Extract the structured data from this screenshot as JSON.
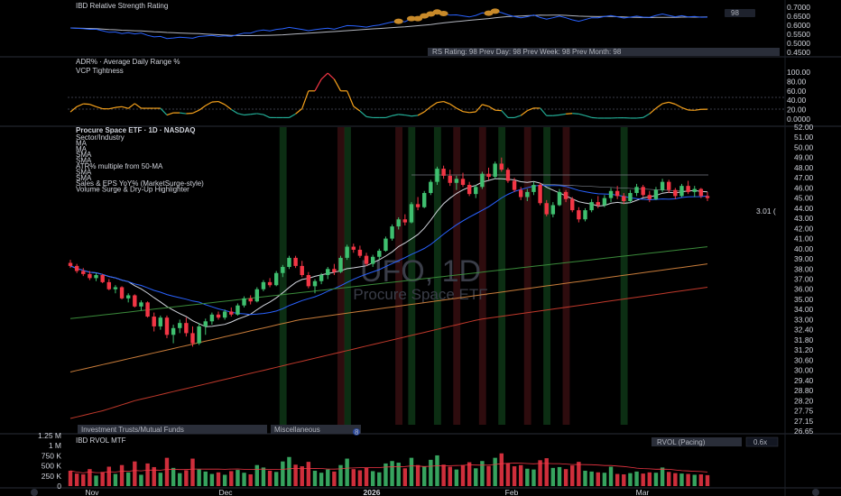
{
  "colors": {
    "up": "#26a69a",
    "up_bright": "#3fbf6f",
    "down": "#f23645",
    "rs_line": "#2962ff",
    "rs_ma": "#b2b5be",
    "rs_dot": "#c88a2a",
    "vcp_up": "#f7a21b",
    "vcp_down": "#22ab94",
    "vcp_high": "#f23645",
    "ma_short": "#d1d4dc",
    "ma_mid": "#2962ff",
    "ma_50": "#3a8a3a",
    "ma_100": "#c87c3a",
    "ma_200": "#c0392b",
    "surge_band": "#0f3a18",
    "dryup_band": "#3a0f12"
  },
  "rs_pane": {
    "title": "IBD Relative Strength Rating",
    "ticks": [
      "0.7000",
      "0.6500",
      "0.6000",
      "0.5500",
      "0.5000",
      "0.4500"
    ],
    "rating_badge": "98",
    "rating_bar": "RS Rating: 98   Prev Day: 98   Prev Week: 98   Prev Month: 98"
  },
  "adr_pane": {
    "title": "ADR% · Average Daily Range %"
  },
  "vcp_pane": {
    "title": "VCP Tightness",
    "ticks": [
      "100.00",
      "80.00",
      "60.00",
      "40.00",
      "20.00",
      "0.0000"
    ]
  },
  "price_pane": {
    "symbol_line": "Procure Space ETF · 1D · NASDAQ",
    "indicators": [
      "Sector/Industry",
      "MA",
      "MA",
      "SMA",
      "SMA",
      "ATR% multiple from 50-MA",
      "SMA",
      "SMA",
      "Sales & EPS YoY% (MarketSurge-style)",
      "Volume Surge & Dry-Up Highlighter"
    ],
    "ticks": [
      "52.00",
      "51.00",
      "50.00",
      "49.00",
      "48.00",
      "47.00",
      "46.00",
      "45.00",
      "44.00",
      "43.00",
      "42.00",
      "41.00",
      "40.00",
      "39.00",
      "38.00",
      "37.00",
      "36.00",
      "35.00",
      "34.00",
      "33.00",
      "32.40",
      "31.80",
      "31.20",
      "30.60",
      "30.00",
      "29.40",
      "28.80",
      "28.20",
      "27.75",
      "27.15",
      "26.65"
    ],
    "watermark_symbol": "UFO, 1D",
    "watermark_name": "Procure Space ETF",
    "atr_label": "3.01 (",
    "industry_tags": [
      "Investment Trusts/Mutual Funds",
      "Miscellaneous"
    ],
    "industry_badge": "8"
  },
  "volume_pane": {
    "title": "IBD RVOL MTF",
    "ticks": [
      "1.25 M",
      "1 M",
      "750 K",
      "500 K",
      "250 K",
      "0"
    ],
    "rvol_label": "RVOL (Pacing)",
    "rvol_value": "0.6x"
  },
  "time_axis": {
    "labels": [
      "Nov",
      "Dec",
      "2026",
      "Feb",
      "Mar"
    ]
  },
  "chart_data": {
    "type": "candlestick",
    "title": "Procure Space ETF · 1D · NASDAQ",
    "ylim": [
      26.65,
      52.0
    ],
    "candles": [
      [
        38.6,
        38.9,
        38.1,
        38.3
      ],
      [
        38.3,
        38.5,
        37.6,
        37.8
      ],
      [
        37.8,
        38.1,
        37.3,
        37.5
      ],
      [
        37.5,
        37.8,
        36.9,
        37.1
      ],
      [
        37.1,
        37.6,
        36.8,
        37.4
      ],
      [
        37.4,
        37.5,
        36.6,
        36.7
      ],
      [
        36.7,
        37.0,
        35.9,
        36.0
      ],
      [
        36.0,
        36.4,
        35.6,
        36.2
      ],
      [
        36.2,
        36.3,
        35.0,
        35.1
      ],
      [
        35.1,
        35.6,
        34.7,
        35.4
      ],
      [
        35.4,
        35.5,
        34.2,
        34.3
      ],
      [
        34.3,
        34.9,
        33.9,
        34.7
      ],
      [
        34.7,
        34.8,
        33.2,
        33.3
      ],
      [
        33.3,
        33.7,
        32.3,
        32.6
      ],
      [
        32.6,
        33.4,
        32.4,
        33.2
      ],
      [
        33.2,
        33.4,
        31.9,
        32.1
      ],
      [
        32.1,
        32.7,
        31.6,
        32.5
      ],
      [
        32.5,
        33.0,
        32.2,
        32.8
      ],
      [
        32.8,
        33.2,
        32.0,
        32.2
      ],
      [
        32.2,
        32.6,
        31.4,
        31.6
      ],
      [
        31.6,
        32.8,
        31.5,
        32.6
      ],
      [
        32.6,
        33.1,
        32.1,
        32.9
      ],
      [
        32.9,
        33.7,
        32.7,
        33.5
      ],
      [
        33.5,
        33.8,
        33.0,
        33.2
      ],
      [
        33.2,
        34.0,
        33.0,
        33.8
      ],
      [
        33.8,
        34.2,
        33.3,
        33.5
      ],
      [
        33.5,
        34.6,
        33.4,
        34.4
      ],
      [
        34.4,
        35.3,
        34.2,
        35.1
      ],
      [
        35.1,
        35.4,
        34.5,
        34.8
      ],
      [
        34.8,
        36.2,
        34.7,
        36.0
      ],
      [
        36.0,
        36.9,
        35.8,
        36.7
      ],
      [
        36.7,
        37.1,
        36.2,
        36.4
      ],
      [
        36.4,
        37.8,
        36.3,
        37.6
      ],
      [
        37.6,
        38.4,
        37.2,
        38.2
      ],
      [
        38.2,
        39.3,
        38.0,
        39.1
      ],
      [
        39.1,
        39.3,
        38.1,
        38.3
      ],
      [
        38.3,
        38.8,
        37.2,
        37.4
      ],
      [
        37.4,
        37.7,
        36.1,
        36.3
      ],
      [
        36.3,
        37.0,
        35.6,
        36.8
      ],
      [
        36.8,
        37.6,
        36.5,
        37.4
      ],
      [
        37.4,
        38.2,
        37.0,
        38.0
      ],
      [
        38.0,
        38.5,
        37.4,
        37.7
      ],
      [
        37.7,
        39.3,
        37.6,
        39.1
      ],
      [
        39.1,
        40.4,
        38.9,
        40.2
      ],
      [
        40.2,
        40.5,
        39.6,
        39.9
      ],
      [
        39.9,
        40.3,
        39.1,
        39.3
      ],
      [
        39.3,
        39.6,
        38.3,
        38.5
      ],
      [
        38.5,
        39.4,
        38.2,
        39.2
      ],
      [
        39.2,
        40.0,
        38.9,
        39.8
      ],
      [
        39.8,
        41.2,
        39.7,
        41.0
      ],
      [
        41.0,
        42.4,
        40.8,
        42.2
      ],
      [
        42.2,
        43.1,
        41.9,
        42.9
      ],
      [
        42.9,
        43.4,
        42.3,
        42.6
      ],
      [
        42.6,
        44.6,
        42.5,
        44.4
      ],
      [
        44.4,
        45.1,
        43.8,
        44.1
      ],
      [
        44.1,
        45.7,
        44.0,
        45.5
      ],
      [
        45.5,
        46.8,
        45.3,
        46.6
      ],
      [
        46.6,
        48.1,
        46.3,
        47.9
      ],
      [
        47.9,
        48.2,
        46.9,
        47.2
      ],
      [
        47.2,
        47.8,
        46.2,
        46.5
      ],
      [
        46.5,
        47.2,
        45.8,
        46.9
      ],
      [
        46.9,
        47.5,
        46.1,
        46.3
      ],
      [
        46.3,
        46.6,
        45.2,
        45.4
      ],
      [
        45.4,
        46.3,
        45.0,
        46.1
      ],
      [
        46.1,
        47.6,
        45.9,
        47.4
      ],
      [
        47.4,
        48.0,
        46.8,
        47.1
      ],
      [
        47.1,
        48.6,
        46.9,
        48.4
      ],
      [
        48.4,
        49.0,
        47.6,
        47.8
      ],
      [
        47.8,
        48.0,
        46.5,
        46.7
      ],
      [
        46.7,
        47.0,
        45.6,
        45.8
      ],
      [
        45.8,
        46.1,
        44.8,
        45.1
      ],
      [
        45.1,
        45.9,
        44.7,
        45.6
      ],
      [
        45.6,
        46.6,
        45.3,
        46.3
      ],
      [
        46.3,
        46.5,
        44.3,
        44.5
      ],
      [
        44.5,
        44.8,
        43.2,
        43.4
      ],
      [
        43.4,
        44.6,
        43.1,
        44.3
      ],
      [
        44.3,
        45.9,
        44.2,
        45.6
      ],
      [
        45.6,
        45.8,
        44.6,
        44.9
      ],
      [
        44.9,
        45.1,
        43.6,
        43.8
      ],
      [
        43.8,
        44.1,
        42.6,
        42.9
      ],
      [
        42.9,
        44.0,
        42.7,
        43.8
      ],
      [
        43.8,
        44.9,
        43.6,
        44.6
      ],
      [
        44.6,
        45.2,
        44.0,
        44.3
      ],
      [
        44.3,
        45.3,
        44.1,
        45.0
      ],
      [
        45.0,
        46.0,
        44.6,
        45.7
      ],
      [
        45.7,
        46.2,
        44.9,
        45.2
      ],
      [
        45.2,
        45.5,
        44.4,
        44.7
      ],
      [
        44.7,
        45.8,
        44.5,
        45.5
      ],
      [
        45.5,
        46.4,
        45.2,
        46.1
      ],
      [
        46.1,
        46.3,
        45.1,
        45.3
      ],
      [
        45.3,
        45.7,
        44.6,
        44.9
      ],
      [
        44.9,
        46.1,
        44.8,
        45.8
      ],
      [
        45.8,
        46.9,
        45.6,
        46.6
      ],
      [
        46.6,
        46.8,
        45.5,
        45.8
      ],
      [
        45.8,
        46.0,
        44.9,
        45.2
      ],
      [
        45.2,
        46.4,
        45.1,
        46.2
      ],
      [
        46.2,
        46.7,
        45.4,
        45.6
      ],
      [
        45.6,
        46.2,
        45.1,
        45.9
      ],
      [
        45.9,
        46.0,
        45.0,
        45.2
      ],
      [
        45.2,
        45.6,
        44.7,
        45.0
      ]
    ],
    "volume": [
      380,
      310,
      290,
      420,
      260,
      350,
      480,
      300,
      520,
      340,
      610,
      280,
      560,
      470,
      330,
      700,
      450,
      320,
      390,
      680,
      410,
      360,
      300,
      340,
      280,
      370,
      400,
      330,
      290,
      520,
      460,
      380,
      350,
      610,
      720,
      530,
      490,
      600,
      380,
      330,
      410,
      360,
      520,
      680,
      420,
      390,
      450,
      370,
      340,
      560,
      620,
      580,
      440,
      700,
      520,
      480,
      650,
      760,
      530,
      480,
      410,
      520,
      590,
      440,
      620,
      500,
      700,
      810,
      560,
      490,
      520,
      430,
      410,
      640,
      690,
      450,
      470,
      420,
      510,
      600,
      380,
      360,
      340,
      330,
      480,
      300,
      290,
      320,
      360,
      310,
      340,
      330,
      460,
      350,
      320,
      310,
      300,
      280,
      290,
      270
    ],
    "ylabel": ""
  }
}
